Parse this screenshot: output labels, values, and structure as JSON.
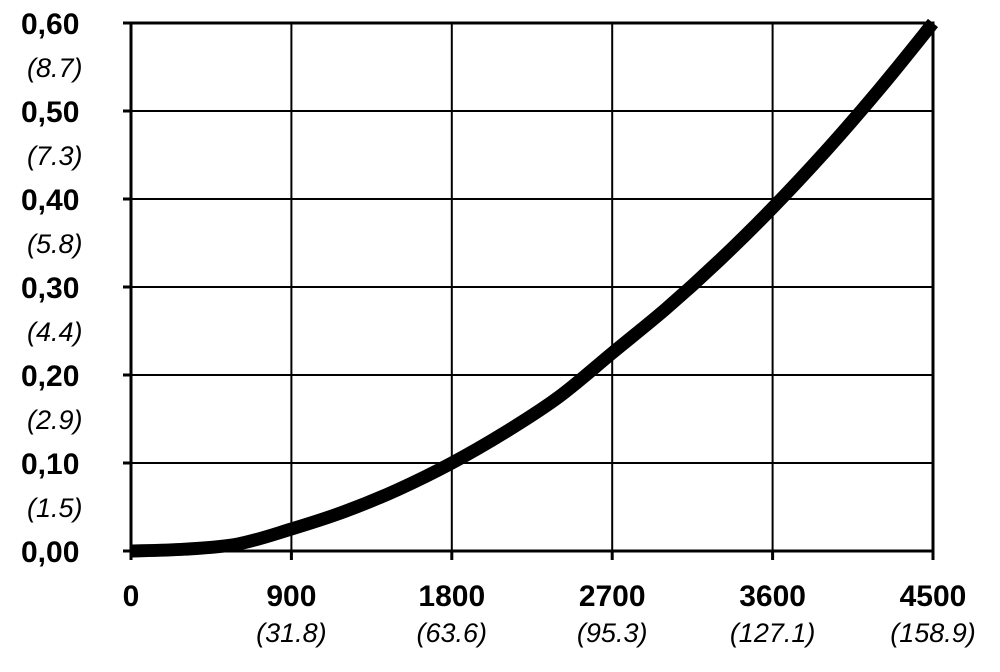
{
  "chart_data": {
    "type": "line",
    "title": "",
    "xlabel": "",
    "ylabel": "",
    "xlim": [
      0,
      4500
    ],
    "ylim": [
      0,
      0.6
    ],
    "grid": true,
    "legend": "none",
    "x_ticks": [
      {
        "value": 0,
        "label": "0",
        "sublabel": ""
      },
      {
        "value": 900,
        "label": "900",
        "sublabel": "(31.8)"
      },
      {
        "value": 1800,
        "label": "1800",
        "sublabel": "(63.6)"
      },
      {
        "value": 2700,
        "label": "2700",
        "sublabel": "(95.3)"
      },
      {
        "value": 3600,
        "label": "3600",
        "sublabel": "(127.1)"
      },
      {
        "value": 4500,
        "label": "4500",
        "sublabel": "(158.9)"
      }
    ],
    "y_ticks": [
      {
        "value": 0.6,
        "label": "0,60",
        "sublabel": "(8.7)"
      },
      {
        "value": 0.5,
        "label": "0,50",
        "sublabel": "(7.3)"
      },
      {
        "value": 0.4,
        "label": "0,40",
        "sublabel": "(5.8)"
      },
      {
        "value": 0.3,
        "label": "0,30",
        "sublabel": "(4.4)"
      },
      {
        "value": 0.2,
        "label": "0,20",
        "sublabel": "(2.9)"
      },
      {
        "value": 0.1,
        "label": "0,10",
        "sublabel": "(1.5)"
      },
      {
        "value": 0.0,
        "label": "0,00",
        "sublabel": ""
      }
    ],
    "series": [
      {
        "color": "#000000",
        "x": [
          0,
          300,
          600,
          900,
          1200,
          1500,
          1800,
          2100,
          2400,
          2700,
          3000,
          3300,
          3600,
          3900,
          4200,
          4500
        ],
        "y": [
          0.0,
          0.002,
          0.008,
          0.025,
          0.045,
          0.07,
          0.1,
          0.135,
          0.175,
          0.225,
          0.275,
          0.33,
          0.39,
          0.455,
          0.525,
          0.6
        ]
      }
    ]
  }
}
